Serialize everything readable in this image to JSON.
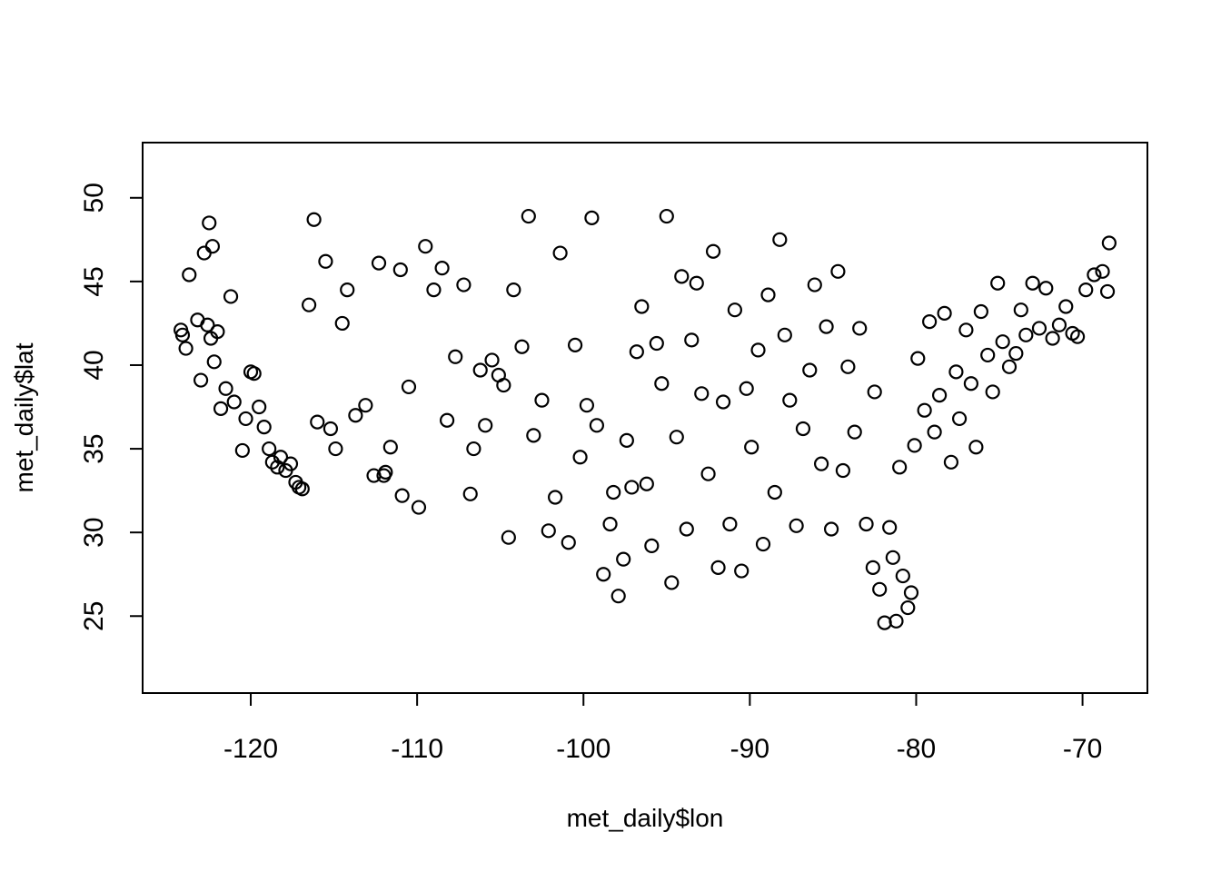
{
  "chart_data": {
    "type": "scatter",
    "title": "",
    "xlabel": "met_daily$lon",
    "ylabel": "met_daily$lat",
    "xlim": [
      -126.5,
      -66.1
    ],
    "ylim": [
      20.4,
      53.3
    ],
    "xticks": [
      -120,
      -110,
      -100,
      -90,
      -80,
      -70
    ],
    "yticks": [
      25,
      30,
      35,
      40,
      45,
      50
    ],
    "marker": "open-circle",
    "point_color": "#000000",
    "series": [
      {
        "values": [
          [
            -124.2,
            42.1
          ],
          [
            -124.1,
            41.8
          ],
          [
            -123.9,
            41.0
          ],
          [
            -123.7,
            45.4
          ],
          [
            -123.2,
            42.7
          ],
          [
            -123.0,
            39.1
          ],
          [
            -122.8,
            46.7
          ],
          [
            -122.6,
            42.4
          ],
          [
            -122.5,
            48.5
          ],
          [
            -122.3,
            47.1
          ],
          [
            -122.4,
            41.6
          ],
          [
            -122.2,
            40.2
          ],
          [
            -122.0,
            42.0
          ],
          [
            -121.8,
            37.4
          ],
          [
            -121.5,
            38.6
          ],
          [
            -121.2,
            44.1
          ],
          [
            -121.0,
            37.8
          ],
          [
            -120.5,
            34.9
          ],
          [
            -120.3,
            36.8
          ],
          [
            -120.0,
            39.6
          ],
          [
            -119.8,
            39.5
          ],
          [
            -119.5,
            37.5
          ],
          [
            -119.2,
            36.3
          ],
          [
            -118.9,
            35.0
          ],
          [
            -118.7,
            34.2
          ],
          [
            -118.4,
            33.9
          ],
          [
            -118.2,
            34.5
          ],
          [
            -117.9,
            33.7
          ],
          [
            -117.6,
            34.1
          ],
          [
            -117.3,
            33.0
          ],
          [
            -117.1,
            32.7
          ],
          [
            -116.9,
            32.6
          ],
          [
            -116.5,
            43.6
          ],
          [
            -116.2,
            48.7
          ],
          [
            -116.0,
            36.6
          ],
          [
            -115.5,
            46.2
          ],
          [
            -115.2,
            36.2
          ],
          [
            -114.9,
            35.0
          ],
          [
            -114.5,
            42.5
          ],
          [
            -114.2,
            44.5
          ],
          [
            -113.7,
            37.0
          ],
          [
            -113.1,
            37.6
          ],
          [
            -112.6,
            33.4
          ],
          [
            -112.3,
            46.1
          ],
          [
            -112.0,
            33.4
          ],
          [
            -111.9,
            33.6
          ],
          [
            -111.6,
            35.1
          ],
          [
            -111.0,
            45.7
          ],
          [
            -110.9,
            32.2
          ],
          [
            -110.5,
            38.7
          ],
          [
            -109.9,
            31.5
          ],
          [
            -109.5,
            47.1
          ],
          [
            -109.0,
            44.5
          ],
          [
            -108.5,
            45.8
          ],
          [
            -108.2,
            36.7
          ],
          [
            -107.7,
            40.5
          ],
          [
            -107.2,
            44.8
          ],
          [
            -106.8,
            32.3
          ],
          [
            -106.6,
            35.0
          ],
          [
            -106.2,
            39.7
          ],
          [
            -105.9,
            36.4
          ],
          [
            -105.5,
            40.3
          ],
          [
            -105.1,
            39.4
          ],
          [
            -104.8,
            38.8
          ],
          [
            -104.5,
            29.7
          ],
          [
            -104.2,
            44.5
          ],
          [
            -103.7,
            41.1
          ],
          [
            -103.3,
            48.9
          ],
          [
            -103.0,
            35.8
          ],
          [
            -102.5,
            37.9
          ],
          [
            -102.1,
            30.1
          ],
          [
            -101.7,
            32.1
          ],
          [
            -101.4,
            46.7
          ],
          [
            -100.9,
            29.4
          ],
          [
            -100.5,
            41.2
          ],
          [
            -100.2,
            34.5
          ],
          [
            -99.8,
            37.6
          ],
          [
            -99.5,
            48.8
          ],
          [
            -99.2,
            36.4
          ],
          [
            -98.8,
            27.5
          ],
          [
            -98.4,
            30.5
          ],
          [
            -98.2,
            32.4
          ],
          [
            -97.9,
            26.2
          ],
          [
            -97.6,
            28.4
          ],
          [
            -97.4,
            35.5
          ],
          [
            -97.1,
            32.7
          ],
          [
            -96.8,
            40.8
          ],
          [
            -96.5,
            43.5
          ],
          [
            -96.2,
            32.9
          ],
          [
            -95.9,
            29.2
          ],
          [
            -95.6,
            41.3
          ],
          [
            -95.3,
            38.9
          ],
          [
            -95.0,
            48.9
          ],
          [
            -94.7,
            27.0
          ],
          [
            -94.4,
            35.7
          ],
          [
            -94.1,
            45.3
          ],
          [
            -93.8,
            30.2
          ],
          [
            -93.5,
            41.5
          ],
          [
            -93.2,
            44.9
          ],
          [
            -92.9,
            38.3
          ],
          [
            -92.5,
            33.5
          ],
          [
            -92.2,
            46.8
          ],
          [
            -91.9,
            27.9
          ],
          [
            -91.6,
            37.8
          ],
          [
            -91.2,
            30.5
          ],
          [
            -90.9,
            43.3
          ],
          [
            -90.5,
            27.7
          ],
          [
            -90.2,
            38.6
          ],
          [
            -89.9,
            35.1
          ],
          [
            -89.5,
            40.9
          ],
          [
            -89.2,
            29.3
          ],
          [
            -88.9,
            44.2
          ],
          [
            -88.5,
            32.4
          ],
          [
            -88.2,
            47.5
          ],
          [
            -87.9,
            41.8
          ],
          [
            -87.6,
            37.9
          ],
          [
            -87.2,
            30.4
          ],
          [
            -86.8,
            36.2
          ],
          [
            -86.4,
            39.7
          ],
          [
            -86.1,
            44.8
          ],
          [
            -85.7,
            34.1
          ],
          [
            -85.4,
            42.3
          ],
          [
            -85.1,
            30.2
          ],
          [
            -84.7,
            45.6
          ],
          [
            -84.4,
            33.7
          ],
          [
            -84.1,
            39.9
          ],
          [
            -83.7,
            36.0
          ],
          [
            -83.4,
            42.2
          ],
          [
            -83.0,
            30.5
          ],
          [
            -82.6,
            27.9
          ],
          [
            -82.5,
            38.4
          ],
          [
            -82.2,
            26.6
          ],
          [
            -81.9,
            24.6
          ],
          [
            -81.6,
            30.3
          ],
          [
            -81.4,
            28.5
          ],
          [
            -81.2,
            24.7
          ],
          [
            -81.0,
            33.9
          ],
          [
            -80.8,
            27.4
          ],
          [
            -80.5,
            25.5
          ],
          [
            -80.3,
            26.4
          ],
          [
            -80.1,
            35.2
          ],
          [
            -79.9,
            40.4
          ],
          [
            -79.5,
            37.3
          ],
          [
            -79.2,
            42.6
          ],
          [
            -78.9,
            36.0
          ],
          [
            -78.6,
            38.2
          ],
          [
            -78.3,
            43.1
          ],
          [
            -77.9,
            34.2
          ],
          [
            -77.6,
            39.6
          ],
          [
            -77.4,
            36.8
          ],
          [
            -77.0,
            42.1
          ],
          [
            -76.7,
            38.9
          ],
          [
            -76.4,
            35.1
          ],
          [
            -76.1,
            43.2
          ],
          [
            -75.7,
            40.6
          ],
          [
            -75.4,
            38.4
          ],
          [
            -75.1,
            44.9
          ],
          [
            -74.8,
            41.4
          ],
          [
            -74.4,
            39.9
          ],
          [
            -74.0,
            40.7
          ],
          [
            -73.7,
            43.3
          ],
          [
            -73.4,
            41.8
          ],
          [
            -73.0,
            44.9
          ],
          [
            -72.6,
            42.2
          ],
          [
            -72.2,
            44.6
          ],
          [
            -71.8,
            41.6
          ],
          [
            -71.4,
            42.4
          ],
          [
            -71.0,
            43.5
          ],
          [
            -70.6,
            41.9
          ],
          [
            -70.3,
            41.7
          ],
          [
            -69.8,
            44.5
          ],
          [
            -69.3,
            45.4
          ],
          [
            -68.8,
            45.6
          ],
          [
            -68.4,
            47.3
          ],
          [
            -68.5,
            44.4
          ]
        ]
      }
    ]
  }
}
